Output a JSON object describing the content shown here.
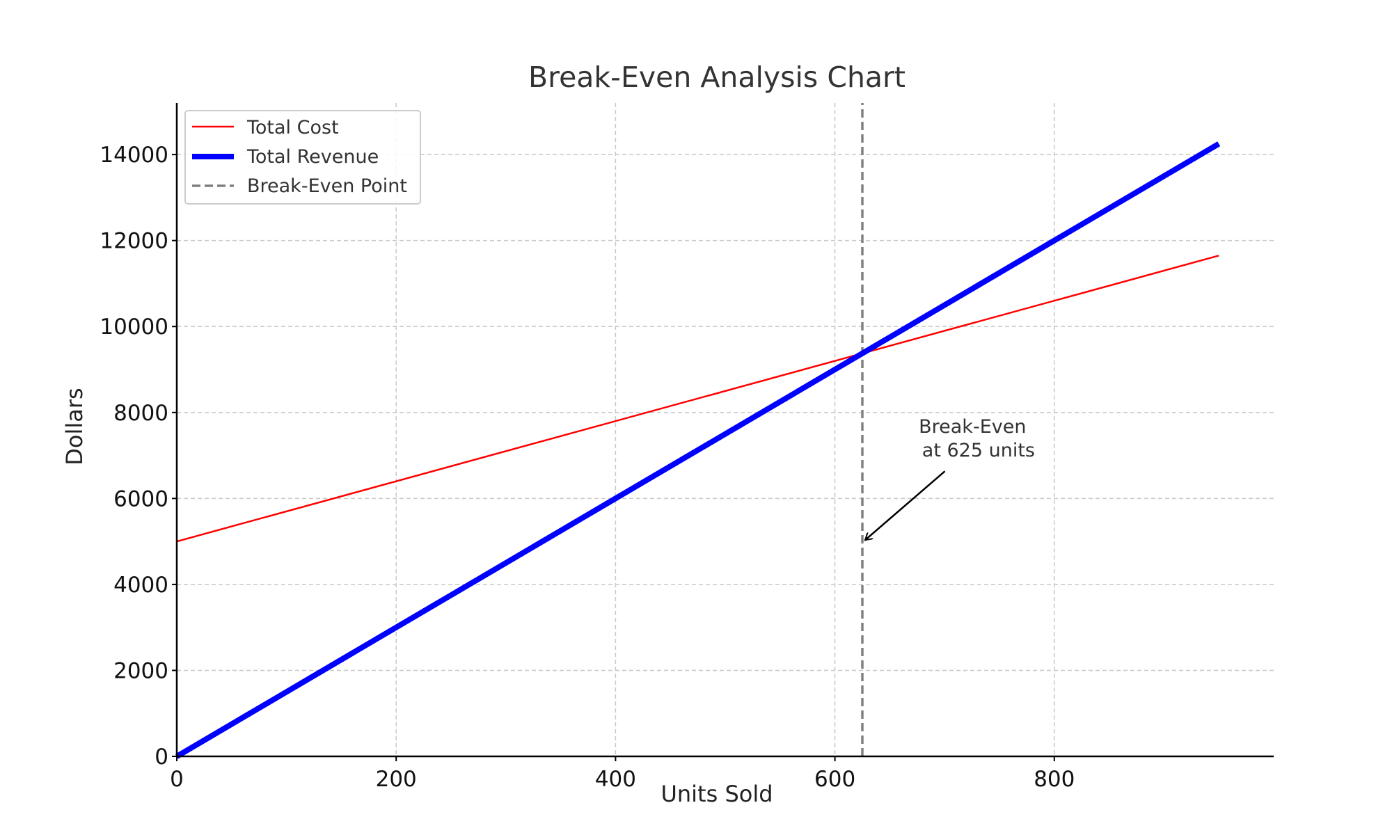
{
  "chart_data": {
    "type": "line",
    "title": "Break-Even Analysis Chart",
    "xlabel": "Units Sold",
    "ylabel": "Dollars",
    "xlim": [
      0,
      1000
    ],
    "ylim": [
      0,
      15200
    ],
    "x_ticks": [
      0,
      200,
      400,
      600,
      800
    ],
    "y_ticks": [
      0,
      2000,
      4000,
      6000,
      8000,
      10000,
      12000,
      14000
    ],
    "grid": true,
    "legend_position": "top-left",
    "series": [
      {
        "name": "Total Cost",
        "color": "#ff0000",
        "style": "solid",
        "x": [
          0,
          950
        ],
        "y": [
          5000,
          11650
        ]
      },
      {
        "name": "Total Revenue",
        "color": "#0000ff",
        "style": "solid-thick",
        "x": [
          0,
          950
        ],
        "y": [
          0,
          14250
        ]
      },
      {
        "name": "Break-Even Point",
        "color": "#808080",
        "style": "dashed",
        "x": [
          625,
          625
        ],
        "y": [
          0,
          15200
        ]
      }
    ],
    "annotation": {
      "text_line1": "Break-Even",
      "text_line2": " at 625 units",
      "point": [
        625,
        5000
      ],
      "text_position": [
        725,
        7200
      ]
    }
  }
}
